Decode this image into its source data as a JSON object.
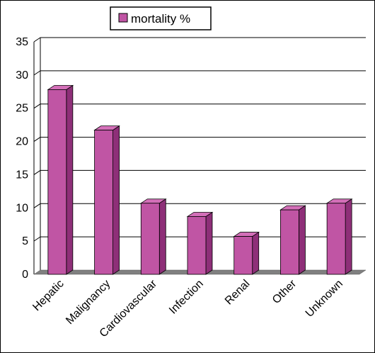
{
  "chart_data": {
    "type": "bar",
    "style": "3d-column",
    "categories": [
      "Hepatic",
      "Malignancy",
      "Cardiovascular",
      "Infection",
      "Renal",
      "Other",
      "Unknown"
    ],
    "series": [
      {
        "name": "mortality %",
        "values": [
          27.8,
          21.7,
          10.7,
          8.7,
          5.7,
          9.7,
          10.7
        ]
      }
    ],
    "yticks": [
      "0",
      "5",
      "10",
      "15",
      "20",
      "25",
      "30",
      "35"
    ],
    "ylim": [
      0,
      35
    ],
    "grid": true,
    "legend_position": "top",
    "colors": {
      "bar_front": "#c055a4",
      "bar_side": "#8e2f78",
      "bar_top": "#d36fb8",
      "floor": "#808080",
      "grid": "#000000"
    }
  }
}
